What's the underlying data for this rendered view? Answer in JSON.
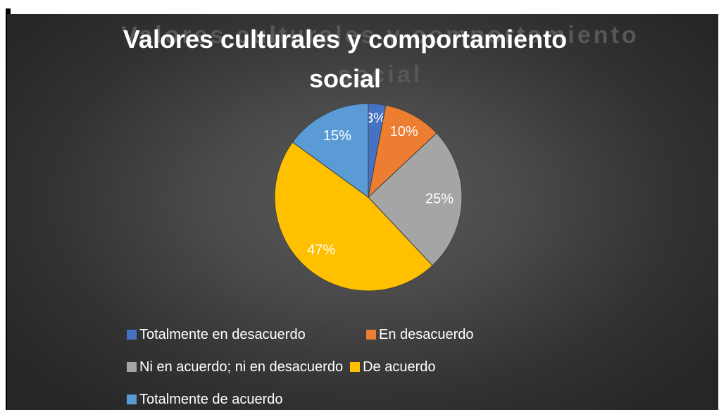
{
  "chart_data": {
    "type": "pie",
    "title": "Valores culturales y comportamiento social",
    "title_lines": [
      "Valores culturales y comportamiento",
      "social"
    ],
    "categories": [
      "Totalmente en desacuerdo",
      "En desacuerdo",
      "Ni en acuerdo; ni en desacuerdo",
      "De acuerdo",
      "Totalmente de acuerdo"
    ],
    "values": [
      3,
      10,
      25,
      47,
      15
    ],
    "data_labels": [
      "3%",
      "10%",
      "25%",
      "47%",
      "15%"
    ],
    "colors": [
      "#4472c4",
      "#ed7d31",
      "#a5a5a5",
      "#ffc000",
      "#5b9bd5"
    ],
    "legend_position": "bottom",
    "background": "#404040"
  }
}
